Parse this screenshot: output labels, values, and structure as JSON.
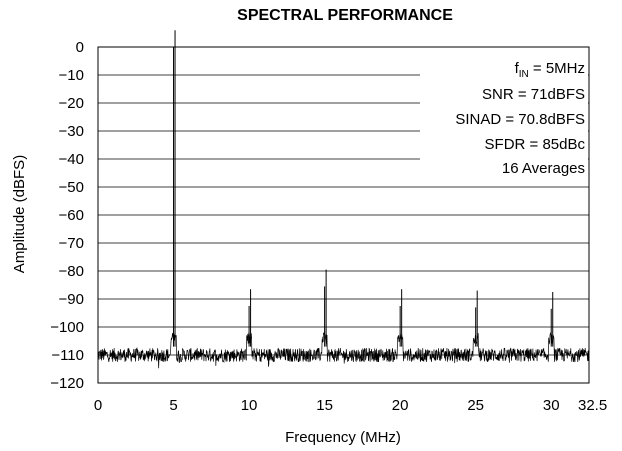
{
  "chart_data": {
    "type": "line",
    "title": "SPECTRAL PERFORMANCE",
    "xlabel": "Frequency (MHz)",
    "ylabel": "Amplitude (dBFS)",
    "xlim": [
      0,
      32.5
    ],
    "ylim": [
      -120,
      0
    ],
    "x_ticks": [
      "0",
      "5",
      "10",
      "15",
      "20",
      "25",
      "30",
      "32.5"
    ],
    "x_tick_values": [
      0,
      5,
      10,
      15,
      20,
      25,
      30,
      32.5
    ],
    "y_ticks": [
      "0",
      "−10",
      "−20",
      "−30",
      "−40",
      "−50",
      "−60",
      "−70",
      "−80",
      "−90",
      "−100",
      "−110",
      "−120"
    ],
    "y_tick_values": [
      0,
      -10,
      -20,
      -30,
      -40,
      -50,
      -60,
      -70,
      -80,
      -90,
      -100,
      -110,
      -120
    ],
    "grid": "horizontal",
    "noise_floor_dbfs": -110,
    "peaks": [
      {
        "x": 5,
        "y": 0
      },
      {
        "x": 10,
        "y": -92.5
      },
      {
        "x": 15,
        "y": -85.5
      },
      {
        "x": 20,
        "y": -92.5
      },
      {
        "x": 25,
        "y": -93
      },
      {
        "x": 30,
        "y": -93.5
      }
    ],
    "annotations": {
      "fin_main": "f",
      "fin_sub": "IN",
      "fin_rest": " = 5MHz",
      "snr": "SNR = 71dBFS",
      "sinad": "SINAD = 70.8dBFS",
      "sfdr": "SFDR = 85dBc",
      "averages": "16 Averages"
    }
  }
}
